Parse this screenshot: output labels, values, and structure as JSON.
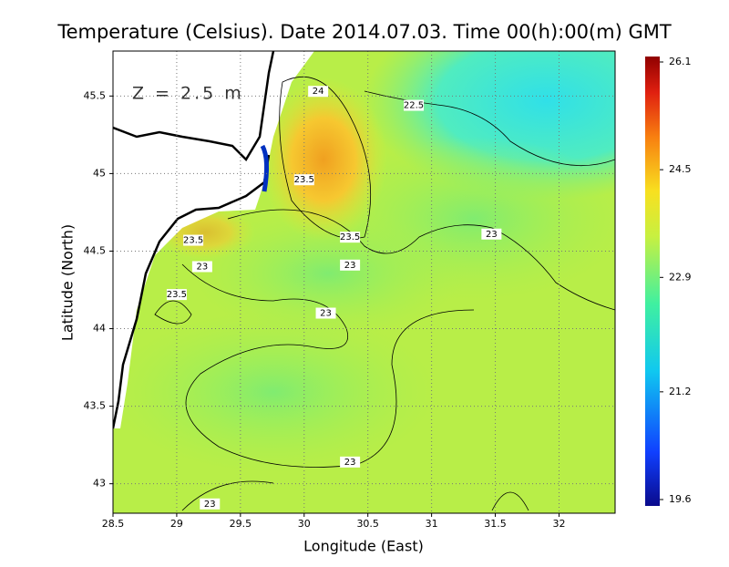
{
  "title": "Temperature (Celsius). Date 2014.07.03. Time 00(h):00(m)  GMT",
  "depth_label": "Z = 2.5 m",
  "x_axis": {
    "label": "Longitude (East)",
    "lim": [
      28.5,
      32.44
    ],
    "ticks": [
      28.5,
      29,
      29.5,
      30,
      30.5,
      31,
      31.5,
      32
    ]
  },
  "y_axis": {
    "label": "Latitude (North)",
    "lim": [
      42.81,
      45.79
    ],
    "ticks": [
      43,
      43.5,
      44,
      44.5,
      45,
      45.5
    ]
  },
  "colorbar": {
    "lim": [
      19.6,
      26.1
    ],
    "ticks": [
      19.6,
      21.2,
      22.9,
      24.5,
      26.1
    ]
  },
  "contour_labels": [
    {
      "value": 24,
      "lon": 30.11,
      "lat": 45.53
    },
    {
      "value": 22.5,
      "lon": 30.86,
      "lat": 45.44
    },
    {
      "value": 23.5,
      "lon": 30.0,
      "lat": 44.96
    },
    {
      "value": 23.5,
      "lon": 30.36,
      "lat": 44.59
    },
    {
      "value": 23,
      "lon": 31.47,
      "lat": 44.61
    },
    {
      "value": 23.5,
      "lon": 29.13,
      "lat": 44.57
    },
    {
      "value": 23,
      "lon": 30.36,
      "lat": 44.41
    },
    {
      "value": 23,
      "lon": 29.2,
      "lat": 44.4
    },
    {
      "value": 23.5,
      "lon": 29.0,
      "lat": 44.22
    },
    {
      "value": 23,
      "lon": 30.17,
      "lat": 44.1
    },
    {
      "value": 23,
      "lon": 30.36,
      "lat": 43.14
    },
    {
      "value": 23,
      "lon": 29.26,
      "lat": 42.87
    }
  ]
}
